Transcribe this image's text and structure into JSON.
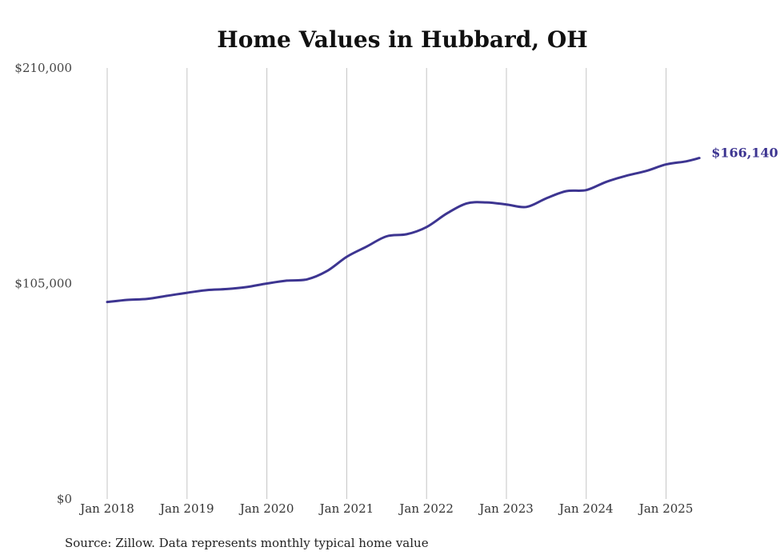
{
  "chart_data": {
    "type": "line",
    "title": "Home Values in Hubbard, OH",
    "xlabel": "",
    "ylabel": "",
    "ylim": [
      0,
      210000
    ],
    "y_ticks": [
      "$0",
      "$105,000",
      "$210,000"
    ],
    "y_tick_values": [
      0,
      105000,
      210000
    ],
    "x_ticks": [
      "Jan 2018",
      "Jan 2019",
      "Jan 2020",
      "Jan 2021",
      "Jan 2022",
      "Jan 2023",
      "Jan 2024",
      "Jan 2025"
    ],
    "grid": "vertical",
    "line_color": "#3d3591",
    "end_label": "$166,140",
    "source": "Source: Zillow. Data represents monthly typical home value",
    "series": [
      {
        "values": [
          {
            "x": "2018-01",
            "y": 96000
          },
          {
            "x": "2018-04",
            "y": 97000
          },
          {
            "x": "2018-07",
            "y": 97500
          },
          {
            "x": "2018-10",
            "y": 99000
          },
          {
            "x": "2019-01",
            "y": 100500
          },
          {
            "x": "2019-04",
            "y": 101800
          },
          {
            "x": "2019-07",
            "y": 102300
          },
          {
            "x": "2019-10",
            "y": 103300
          },
          {
            "x": "2020-01",
            "y": 105000
          },
          {
            "x": "2020-04",
            "y": 106400
          },
          {
            "x": "2020-07",
            "y": 107000
          },
          {
            "x": "2020-10",
            "y": 111000
          },
          {
            "x": "2021-01",
            "y": 118000
          },
          {
            "x": "2021-04",
            "y": 123000
          },
          {
            "x": "2021-07",
            "y": 128000
          },
          {
            "x": "2021-10",
            "y": 129000
          },
          {
            "x": "2022-01",
            "y": 132500
          },
          {
            "x": "2022-04",
            "y": 139000
          },
          {
            "x": "2022-07",
            "y": 144000
          },
          {
            "x": "2022-10",
            "y": 144500
          },
          {
            "x": "2023-01",
            "y": 143500
          },
          {
            "x": "2023-04",
            "y": 142300
          },
          {
            "x": "2023-07",
            "y": 146500
          },
          {
            "x": "2023-10",
            "y": 150000
          },
          {
            "x": "2024-01",
            "y": 150500
          },
          {
            "x": "2024-04",
            "y": 154500
          },
          {
            "x": "2024-07",
            "y": 157500
          },
          {
            "x": "2024-10",
            "y": 159800
          },
          {
            "x": "2025-01",
            "y": 163000
          },
          {
            "x": "2025-04",
            "y": 164500
          },
          {
            "x": "2025-06",
            "y": 166140
          }
        ]
      }
    ]
  }
}
